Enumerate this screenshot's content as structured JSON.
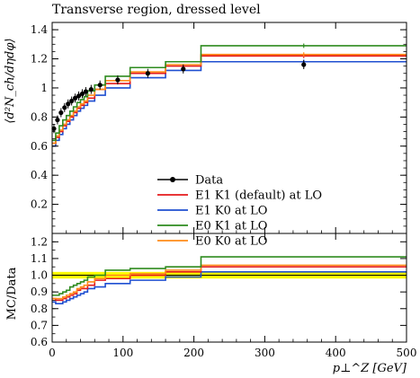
{
  "chart_data": [
    {
      "type": "line",
      "title": "Transverse region, dressed level",
      "ylabel": "⟨d²N_ch/dηdφ⟩",
      "xlabel": "",
      "xlim": [
        0,
        500
      ],
      "ylim": [
        0,
        1.45
      ],
      "yticks": [
        0.2,
        0.4,
        0.6,
        0.8,
        1,
        1.2,
        1.4
      ],
      "ytick_labels": [
        "0.2",
        "0.4",
        "0.6",
        "0.8",
        "1",
        "1.2",
        "1.4"
      ],
      "legend_position": "lower-center",
      "legend": [
        "Data",
        "E1 K1 (default) at LO",
        "E1 K0 at LO",
        "E0 K1 at LO",
        "E0 K0 at LO"
      ],
      "bin_edges": [
        0,
        5,
        10,
        15,
        20,
        25,
        30,
        35,
        40,
        45,
        50,
        60,
        75,
        110,
        160,
        210,
        500
      ],
      "data": {
        "name": "Data",
        "color": "#000000",
        "x": [
          2.5,
          7.5,
          12.5,
          17.5,
          22.5,
          27.5,
          32.5,
          37.5,
          42.5,
          47.5,
          55,
          67.5,
          92.5,
          135,
          185,
          355
        ],
        "y": [
          0.72,
          0.78,
          0.83,
          0.865,
          0.89,
          0.91,
          0.93,
          0.945,
          0.96,
          0.975,
          0.99,
          1.02,
          1.055,
          1.1,
          1.13,
          1.16
        ]
      },
      "series": [
        {
          "name": "E1 K1 (default) at LO",
          "color": "#e41a1c",
          "values": [
            0.62,
            0.66,
            0.7,
            0.74,
            0.77,
            0.8,
            0.83,
            0.86,
            0.88,
            0.9,
            0.93,
            0.99,
            1.03,
            1.1,
            1.15,
            1.22
          ]
        },
        {
          "name": "E1 K0 at LO",
          "color": "#1f4fd1",
          "values": [
            0.6,
            0.64,
            0.68,
            0.72,
            0.75,
            0.78,
            0.81,
            0.84,
            0.86,
            0.88,
            0.91,
            0.95,
            1.0,
            1.07,
            1.12,
            1.18
          ]
        },
        {
          "name": "E0 K1 at LO",
          "color": "#2e8b1f",
          "values": [
            0.64,
            0.69,
            0.74,
            0.78,
            0.81,
            0.84,
            0.87,
            0.9,
            0.92,
            0.94,
            0.98,
            1.02,
            1.08,
            1.14,
            1.18,
            1.29
          ]
        },
        {
          "name": "E0 K0 at LO",
          "color": "#ff8c1a",
          "values": [
            0.62,
            0.67,
            0.71,
            0.75,
            0.78,
            0.81,
            0.84,
            0.87,
            0.89,
            0.91,
            0.95,
            0.99,
            1.05,
            1.11,
            1.16,
            1.23
          ]
        }
      ]
    },
    {
      "type": "line",
      "title": "",
      "ylabel": "MC/Data",
      "xlabel": "p⊥^Z [GeV]",
      "xlim": [
        0,
        500
      ],
      "ylim": [
        0.6,
        1.25
      ],
      "yticks": [
        0.6,
        0.7,
        0.8,
        0.9,
        1.0,
        1.1,
        1.2
      ],
      "ytick_labels": [
        "0.6",
        "0.7",
        "0.8",
        "0.9",
        "1.0",
        "1.1",
        "1.2"
      ],
      "xticks": [
        0,
        100,
        200,
        300,
        400,
        500
      ],
      "xtick_labels": [
        "0",
        "100",
        "200",
        "300",
        "400",
        "500"
      ],
      "band": {
        "low": 0.98,
        "high": 1.02,
        "color": "#ffff00"
      },
      "bin_edges": [
        0,
        5,
        10,
        15,
        20,
        25,
        30,
        35,
        40,
        45,
        50,
        60,
        75,
        110,
        160,
        210,
        500
      ],
      "series": [
        {
          "name": "E1 K1 (default) at LO",
          "color": "#e41a1c",
          "values": [
            0.86,
            0.85,
            0.85,
            0.86,
            0.87,
            0.88,
            0.89,
            0.91,
            0.92,
            0.92,
            0.94,
            0.97,
            0.98,
            1.0,
            1.02,
            1.05
          ]
        },
        {
          "name": "E1 K0 at LO",
          "color": "#1f4fd1",
          "values": [
            0.84,
            0.83,
            0.83,
            0.84,
            0.85,
            0.86,
            0.87,
            0.88,
            0.89,
            0.9,
            0.92,
            0.93,
            0.95,
            0.97,
            0.99,
            1.02
          ]
        },
        {
          "name": "E0 K1 at LO",
          "color": "#2e8b1f",
          "values": [
            0.88,
            0.88,
            0.89,
            0.9,
            0.91,
            0.93,
            0.94,
            0.95,
            0.96,
            0.97,
            0.99,
            1.0,
            1.03,
            1.04,
            1.05,
            1.11
          ]
        },
        {
          "name": "E0 K0 at LO",
          "color": "#ff8c1a",
          "values": [
            0.86,
            0.86,
            0.86,
            0.87,
            0.88,
            0.89,
            0.9,
            0.92,
            0.93,
            0.94,
            0.96,
            0.98,
            1.0,
            1.01,
            1.03,
            1.06
          ]
        }
      ]
    }
  ]
}
